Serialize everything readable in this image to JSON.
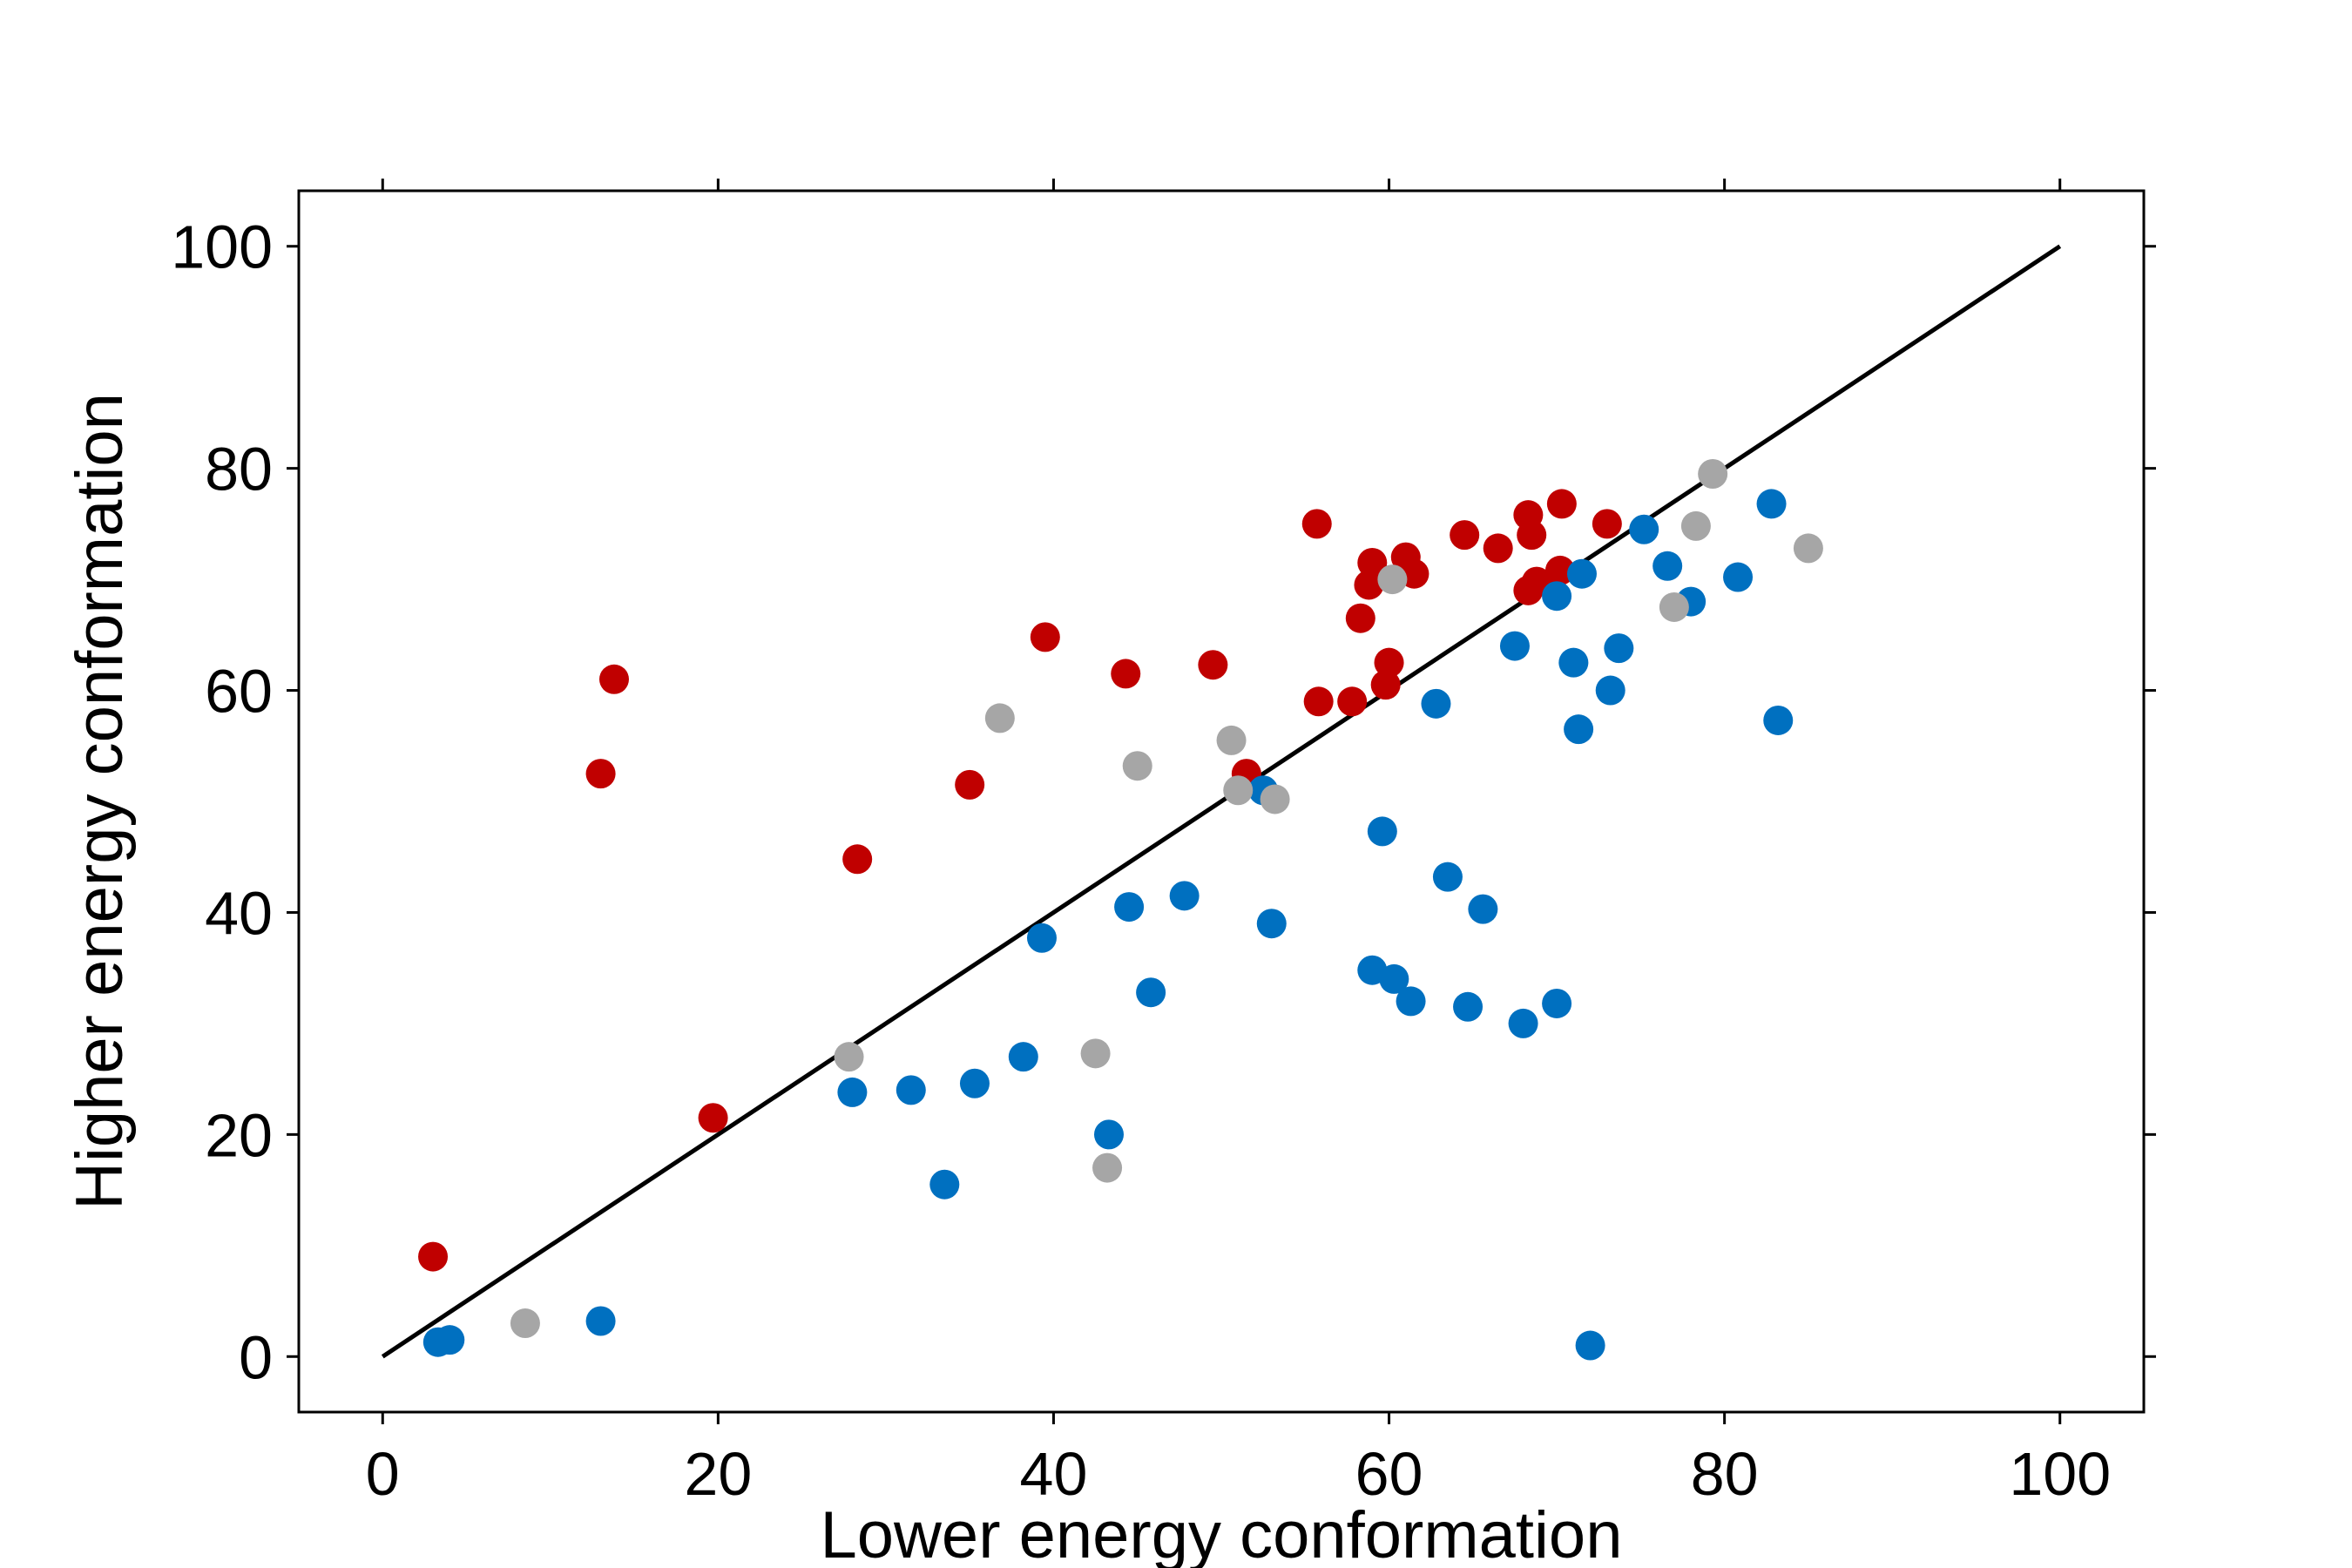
{
  "chart_data": {
    "type": "scatter",
    "xlabel": "Lower energy conformation",
    "ylabel": "Higher energy conformation",
    "xlim": [
      -5,
      105
    ],
    "ylim": [
      -5,
      105
    ],
    "xticks": [
      "0",
      "20",
      "40",
      "60",
      "80",
      "100"
    ],
    "yticks": [
      "0",
      "20",
      "40",
      "60",
      "80",
      "100"
    ],
    "grid": false,
    "reference_line": {
      "from": [
        0,
        0
      ],
      "to": [
        100,
        100
      ],
      "color": "#000000"
    },
    "colors": {
      "red": "#c00000",
      "blue": "#0070c0",
      "gray": "#a6a6a6"
    },
    "series": [
      {
        "color": "#c00000",
        "points": [
          [
            3.0,
            9.0
          ],
          [
            13.0,
            52.5
          ],
          [
            13.8,
            61.0
          ],
          [
            19.7,
            21.5
          ],
          [
            28.3,
            44.8
          ],
          [
            35.0,
            51.5
          ],
          [
            39.5,
            64.8
          ],
          [
            44.3,
            61.5
          ],
          [
            49.5,
            62.3
          ],
          [
            51.5,
            52.5
          ],
          [
            55.7,
            75.0
          ],
          [
            55.8,
            59.0
          ],
          [
            57.8,
            59.0
          ],
          [
            58.3,
            66.5
          ],
          [
            58.8,
            69.5
          ],
          [
            59.0,
            71.5
          ],
          [
            59.8,
            60.5
          ],
          [
            60.0,
            62.5
          ],
          [
            61.0,
            72.0
          ],
          [
            61.5,
            70.5
          ],
          [
            64.5,
            74.0
          ],
          [
            66.5,
            72.8
          ],
          [
            68.3,
            75.8
          ],
          [
            68.5,
            74.0
          ],
          [
            68.3,
            69.0
          ],
          [
            68.8,
            69.8
          ],
          [
            70.2,
            70.8
          ],
          [
            70.3,
            76.8
          ],
          [
            73.0,
            75.0
          ]
        ]
      },
      {
        "color": "#0070c0",
        "points": [
          [
            3.3,
            1.3
          ],
          [
            4.0,
            1.5
          ],
          [
            13.0,
            3.2
          ],
          [
            28.0,
            23.8
          ],
          [
            31.5,
            24.0
          ],
          [
            33.5,
            15.5
          ],
          [
            35.3,
            24.6
          ],
          [
            38.2,
            27.0
          ],
          [
            39.3,
            37.7
          ],
          [
            43.3,
            20.0
          ],
          [
            44.5,
            40.5
          ],
          [
            45.8,
            32.8
          ],
          [
            47.8,
            41.5
          ],
          [
            52.5,
            51.0
          ],
          [
            53.0,
            39.0
          ],
          [
            59.0,
            34.8
          ],
          [
            59.6,
            47.3
          ],
          [
            60.3,
            34.0
          ],
          [
            61.3,
            32.0
          ],
          [
            62.8,
            58.8
          ],
          [
            63.5,
            43.2
          ],
          [
            64.7,
            31.5
          ],
          [
            65.6,
            40.3
          ],
          [
            67.5,
            64.0
          ],
          [
            68.0,
            30.0
          ],
          [
            70.0,
            68.5
          ],
          [
            70.0,
            31.8
          ],
          [
            71.0,
            62.5
          ],
          [
            71.5,
            70.5
          ],
          [
            71.3,
            56.5
          ],
          [
            72.0,
            1.0
          ],
          [
            73.2,
            60.0
          ],
          [
            73.7,
            63.8
          ],
          [
            75.2,
            74.5
          ],
          [
            76.6,
            71.2
          ],
          [
            78.0,
            68.0
          ],
          [
            80.8,
            70.2
          ],
          [
            82.8,
            76.8
          ],
          [
            83.2,
            57.3
          ]
        ]
      },
      {
        "color": "#a6a6a6",
        "points": [
          [
            8.5,
            3.0
          ],
          [
            27.8,
            27.0
          ],
          [
            36.8,
            57.5
          ],
          [
            42.5,
            27.3
          ],
          [
            43.2,
            17.0
          ],
          [
            45.0,
            53.2
          ],
          [
            50.6,
            55.5
          ],
          [
            51.0,
            51.0
          ],
          [
            53.2,
            50.2
          ],
          [
            60.2,
            70.0
          ],
          [
            77.0,
            67.5
          ],
          [
            78.3,
            74.8
          ],
          [
            79.3,
            79.5
          ],
          [
            85.0,
            72.8
          ]
        ]
      }
    ]
  }
}
